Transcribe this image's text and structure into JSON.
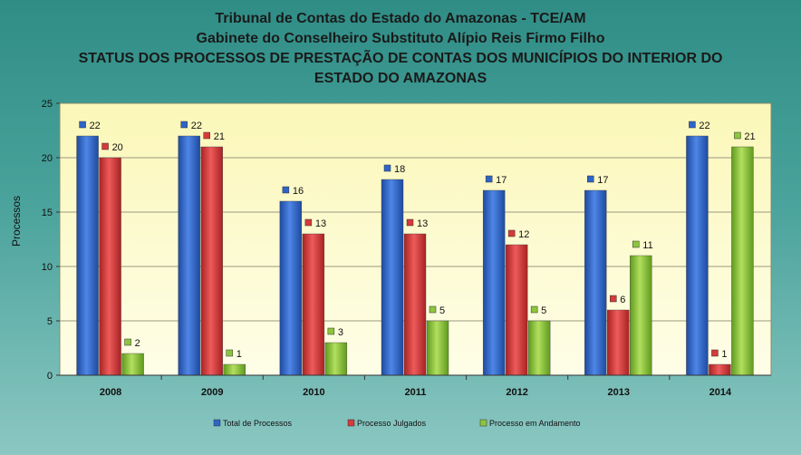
{
  "titles": {
    "line1": "Tribunal de Contas do Estado do Amazonas - TCE/AM",
    "line2": "Gabinete do Conselheiro Substituto Alípio Reis Firmo Filho",
    "line3": "STATUS DOS PROCESSOS DE PRESTAÇÃO DE CONTAS DOS MUNICÍPIOS DO INTERIOR DO",
    "line4": "ESTADO DO AMAZONAS"
  },
  "chart_data": {
    "type": "bar",
    "categories": [
      "2008",
      "2009",
      "2010",
      "2011",
      "2012",
      "2013",
      "2014"
    ],
    "series": [
      {
        "name": "Total de Processos",
        "values": [
          22,
          22,
          16,
          18,
          17,
          17,
          22
        ],
        "color": "#2e64c8"
      },
      {
        "name": "Processo Julgados",
        "values": [
          20,
          21,
          13,
          13,
          12,
          6,
          1
        ],
        "color": "#d63a3a"
      },
      {
        "name": "Processo em Andamento",
        "values": [
          2,
          1,
          3,
          5,
          5,
          11,
          21
        ],
        "color": "#8cc63c"
      }
    ],
    "ylabel": "Processos",
    "ylim": [
      0,
      25
    ],
    "yticks": [
      0,
      5,
      10,
      15,
      20,
      25
    ],
    "grid": true,
    "legend": "bottom",
    "plot_background": "#fdfbcc"
  }
}
